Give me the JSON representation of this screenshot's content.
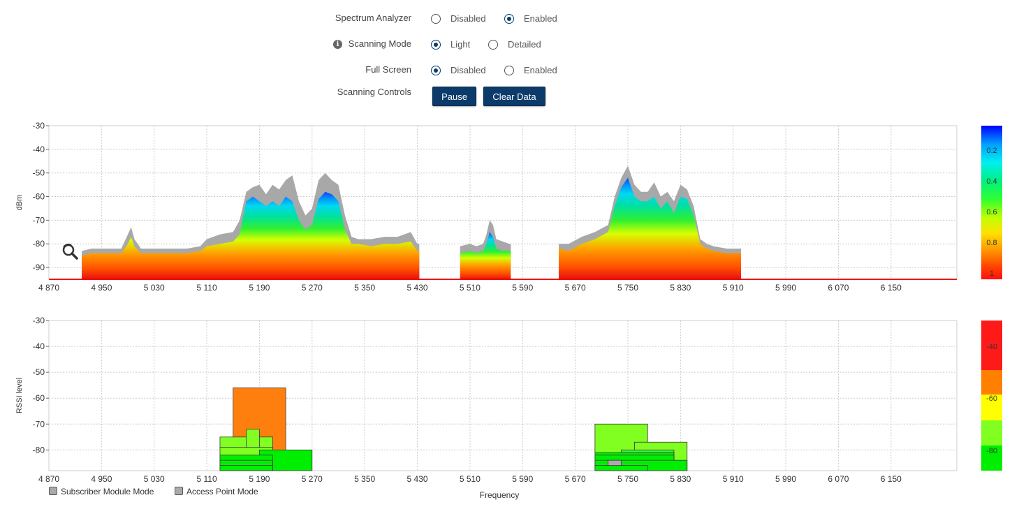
{
  "controls": {
    "spectrum": {
      "label": "Spectrum Analyzer",
      "options": [
        "Disabled",
        "Enabled"
      ],
      "selected": 1
    },
    "scanning": {
      "label": "Scanning Mode",
      "options": [
        "Light",
        "Detailed"
      ],
      "selected": 0
    },
    "fullscreen": {
      "label": "Full Screen",
      "options": [
        "Disabled",
        "Enabled"
      ],
      "selected": 0
    },
    "scanning_controls": {
      "label": "Scanning Controls",
      "pause": "Pause",
      "clear": "Clear Data"
    }
  },
  "legend": {
    "sm": "Subscriber Module Mode",
    "ap": "Access Point Mode"
  },
  "chart_data": [
    {
      "type": "area",
      "ylabel": "dBm",
      "xlabel": "",
      "xlim": [
        4870,
        6250
      ],
      "ylim": [
        -95,
        -30
      ],
      "yticks": [
        -30,
        -40,
        -50,
        -60,
        -70,
        -80,
        -90
      ],
      "xticks": [
        "4 870",
        "4 950",
        "5 030",
        "5 110",
        "5 190",
        "5 270",
        "5 350",
        "5 430",
        "5 510",
        "5 590",
        "5 670",
        "5 750",
        "5 830",
        "5 910",
        "5 990",
        "6 070",
        "6 150"
      ],
      "grid": true,
      "colorbar": {
        "ticks": [
          "0.2",
          "0.4",
          "0.6",
          "0.8",
          "1"
        ]
      },
      "segments": [
        {
          "x": [
            4920,
            4935,
            4960,
            4980,
            4990,
            4995,
            5000,
            5010,
            5030,
            5060,
            5080,
            5100,
            5110,
            5130,
            5150,
            5160,
            5170,
            5180,
            5190,
            5200,
            5210,
            5220,
            5230,
            5240,
            5250,
            5260,
            5270,
            5280,
            5290,
            5300,
            5310,
            5320,
            5330,
            5340,
            5360,
            5380,
            5400,
            5420,
            5430,
            5433
          ],
          "max": [
            -83,
            -82,
            -82,
            -82,
            -76,
            -73,
            -78,
            -82,
            -82,
            -82,
            -82,
            -81,
            -78,
            -76,
            -75,
            -70,
            -58,
            -56,
            -55,
            -59,
            -55,
            -57,
            -53,
            -51,
            -62,
            -68,
            -65,
            -53,
            -50,
            -53,
            -55,
            -68,
            -77,
            -78,
            -78,
            -77,
            -77,
            -75,
            -80,
            -80
          ],
          "energy": [
            -85,
            -84,
            -84,
            -84,
            -80,
            -77,
            -81,
            -84,
            -84,
            -84,
            -84,
            -83,
            -81,
            -80,
            -79,
            -76,
            -62,
            -60,
            -62,
            -64,
            -62,
            -64,
            -60,
            -62,
            -70,
            -74,
            -72,
            -61,
            -58,
            -59,
            -62,
            -74,
            -80,
            -80,
            -81,
            -80,
            -80,
            -79,
            -83,
            -83
          ]
        },
        {
          "x": [
            5495,
            5510,
            5520,
            5530,
            5535,
            5540,
            5545,
            5550,
            5560,
            5570,
            5572
          ],
          "max": [
            -81,
            -80,
            -81,
            -80,
            -76,
            -70,
            -72,
            -78,
            -79,
            -80,
            -80
          ],
          "energy": [
            -84,
            -83,
            -84,
            -83,
            -80,
            -75,
            -77,
            -82,
            -83,
            -83,
            -83
          ]
        },
        {
          "x": [
            5645,
            5660,
            5680,
            5700,
            5720,
            5730,
            5740,
            5750,
            5760,
            5770,
            5780,
            5790,
            5800,
            5810,
            5820,
            5830,
            5840,
            5850,
            5860,
            5870,
            5880,
            5900,
            5915,
            5922
          ],
          "max": [
            -80,
            -80,
            -77,
            -75,
            -72,
            -60,
            -52,
            -47,
            -55,
            -58,
            -58,
            -54,
            -60,
            -58,
            -62,
            -55,
            -57,
            -64,
            -78,
            -80,
            -81,
            -82,
            -82,
            -82
          ],
          "energy": [
            -82,
            -83,
            -80,
            -78,
            -75,
            -64,
            -56,
            -52,
            -60,
            -62,
            -62,
            -60,
            -65,
            -62,
            -67,
            -60,
            -61,
            -68,
            -80,
            -82,
            -83,
            -84,
            -84,
            -84
          ]
        }
      ]
    },
    {
      "type": "bar",
      "ylabel": "RSSI level",
      "xlabel": "Frequency",
      "xlim": [
        4870,
        6250
      ],
      "ylim": [
        -88,
        -30
      ],
      "yticks": [
        -30,
        -40,
        -50,
        -60,
        -70,
        -80
      ],
      "xticks": [
        "4 870",
        "4 950",
        "5 030",
        "5 110",
        "5 190",
        "5 270",
        "5 350",
        "5 430",
        "5 510",
        "5 590",
        "5 670",
        "5 750",
        "5 830",
        "5 910",
        "5 990",
        "6 070",
        "6 150"
      ],
      "grid": true,
      "colorbar": {
        "ticks": [
          "-40",
          "-60",
          "-80"
        ]
      },
      "bars": [
        {
          "x0": 5150,
          "x1": 5230,
          "top": -56,
          "color": "#ff7f0e"
        },
        {
          "x0": 5130,
          "x1": 5210,
          "top": -75,
          "color": "#80ff20"
        },
        {
          "x0": 5170,
          "x1": 5190,
          "top": -72,
          "color": "#80ff20"
        },
        {
          "x0": 5130,
          "x1": 5210,
          "top": -79,
          "color": "#80ff20"
        },
        {
          "x0": 5190,
          "x1": 5270,
          "top": -80,
          "color": "#00ee00"
        },
        {
          "x0": 5130,
          "x1": 5210,
          "top": -82,
          "color": "#00ee00"
        },
        {
          "x0": 5130,
          "x1": 5210,
          "top": -84,
          "color": "#00ee00"
        },
        {
          "x0": 5130,
          "x1": 5210,
          "top": -86,
          "color": "#00ee00"
        },
        {
          "x0": 5700,
          "x1": 5780,
          "top": -70,
          "color": "#80ff20"
        },
        {
          "x0": 5760,
          "x1": 5840,
          "top": -77,
          "color": "#80ff20"
        },
        {
          "x0": 5740,
          "x1": 5820,
          "top": -80,
          "color": "#40f040"
        },
        {
          "x0": 5700,
          "x1": 5820,
          "top": -81,
          "color": "#00ee00"
        },
        {
          "x0": 5700,
          "x1": 5820,
          "top": -82,
          "color": "#00ee00"
        },
        {
          "x0": 5700,
          "x1": 5840,
          "top": -84,
          "color": "#00ee00"
        },
        {
          "x0": 5720,
          "x1": 5740,
          "top": -84,
          "color": "#aaaaaa"
        },
        {
          "x0": 5700,
          "x1": 5780,
          "top": -86,
          "color": "#00ee00"
        }
      ]
    }
  ]
}
